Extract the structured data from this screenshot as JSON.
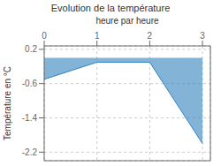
{
  "chart_data": {
    "type": "area",
    "title": "Evolution de la température",
    "xlabel": "heure par heure",
    "ylabel": "Température en °C",
    "x": [
      0,
      1,
      2,
      3
    ],
    "values": [
      -0.5,
      -0.1,
      -0.1,
      -2.0
    ],
    "xlim": [
      0,
      3.15
    ],
    "ylim": [
      -2.4,
      0.28
    ],
    "xticks": [
      0,
      1,
      2,
      3
    ],
    "yticks": [
      0.2,
      -0.6,
      -1.4,
      -2.2
    ],
    "grid": true
  }
}
